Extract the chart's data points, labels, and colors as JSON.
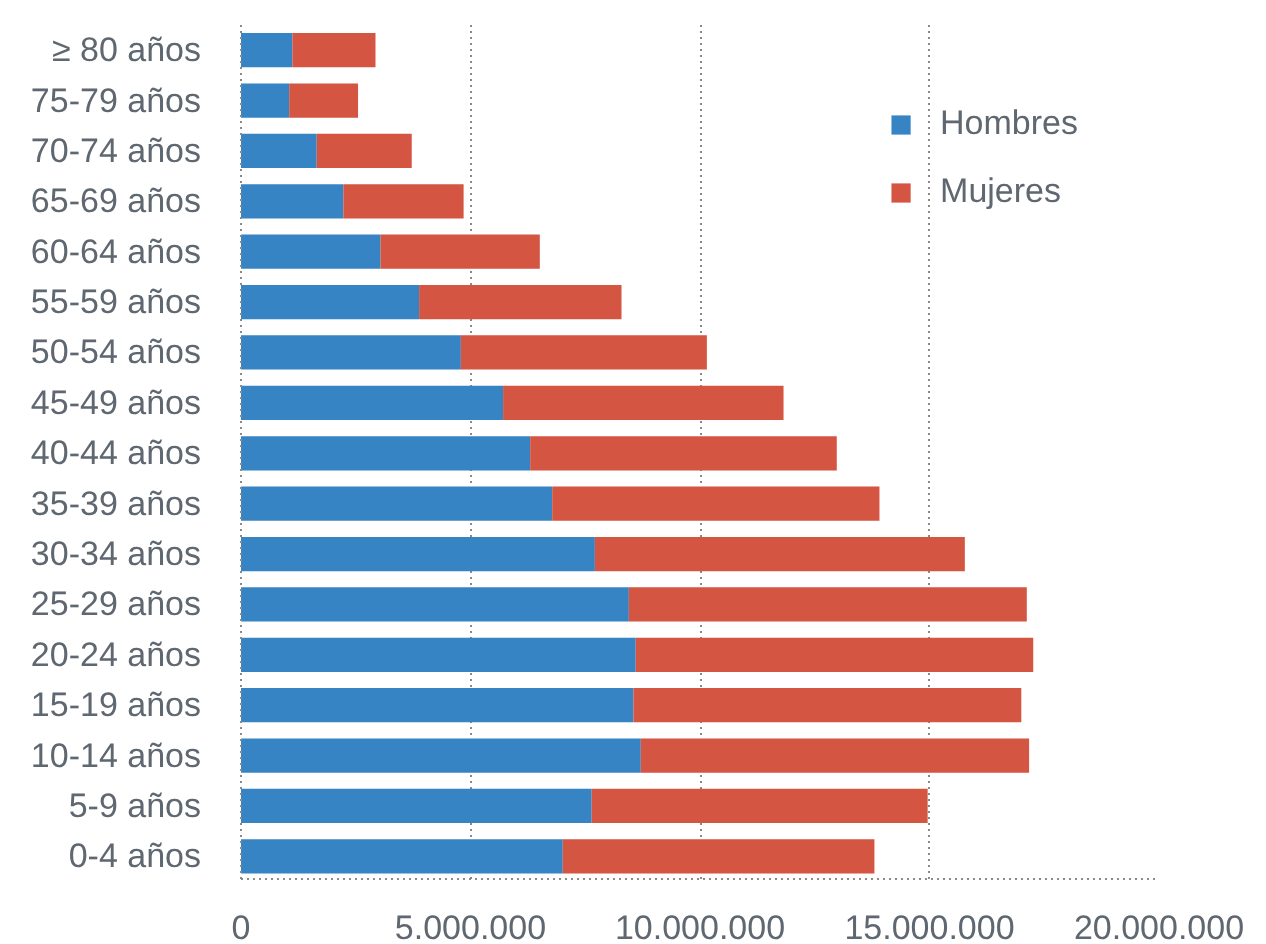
{
  "chart_data": {
    "type": "bar",
    "orientation": "horizontal",
    "stacked": true,
    "categories": [
      "≥ 80 años",
      "75-79 años",
      "70-74 años",
      "65-69 años",
      "60-64 años",
      "55-59 años",
      "50-54 años",
      "45-49 años",
      "40-44 años",
      "35-39 años",
      "30-34 años",
      "25-29 años",
      "20-24 años",
      "15-19 años",
      "10-14 años",
      "5-9 años",
      "0-4 años"
    ],
    "series": [
      {
        "name": "Hombres",
        "color": "#3784c4",
        "values": [
          1120000,
          1050000,
          1650000,
          2230000,
          3040000,
          3880000,
          4790000,
          5710000,
          6300000,
          6780000,
          7710000,
          8450000,
          8600000,
          8550000,
          8710000,
          7640000,
          7010000
        ]
      },
      {
        "name": "Mujeres",
        "color": "#d45541",
        "values": [
          1810000,
          1500000,
          2070000,
          2620000,
          3470000,
          4410000,
          5360000,
          6110000,
          6680000,
          7130000,
          8060000,
          8670000,
          8660000,
          8450000,
          8460000,
          7320000,
          6790000
        ]
      }
    ],
    "xlim": [
      0,
      20000000
    ],
    "xticks": [
      0,
      {
        "value": 5000000,
        "label": "5.000.000"
      },
      {
        "value": 10000000,
        "label": "10.000.000"
      },
      {
        "value": 15000000,
        "label": "15.000.000"
      },
      {
        "value": 20000000,
        "label": "20.000.000"
      }
    ],
    "grid": "x",
    "legend": "top right"
  }
}
